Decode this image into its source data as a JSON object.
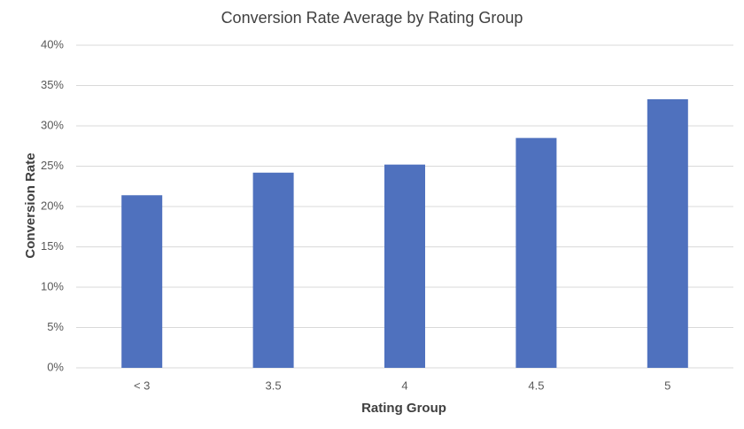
{
  "chart_data": {
    "type": "bar",
    "title": "Conversion Rate Average by Rating Group",
    "x_label": "Rating Group",
    "y_label": "Conversion Rate",
    "categories": [
      "< 3",
      "3.5",
      "4",
      "4.5",
      "5"
    ],
    "values": [
      21.4,
      24.2,
      25.2,
      28.5,
      33.3
    ],
    "color": "#4f71be",
    "ylim": [
      0,
      40
    ],
    "yticks": [
      {
        "value": 0,
        "label": "0%"
      },
      {
        "value": 5,
        "label": "5%"
      },
      {
        "value": 10,
        "label": "10%"
      },
      {
        "value": 15,
        "label": "15%"
      },
      {
        "value": 20,
        "label": "20%"
      },
      {
        "value": 25,
        "label": "25%"
      },
      {
        "value": 30,
        "label": "30%"
      },
      {
        "value": 35,
        "label": "35%"
      },
      {
        "value": 40,
        "label": "40%"
      }
    ],
    "grid": true
  }
}
